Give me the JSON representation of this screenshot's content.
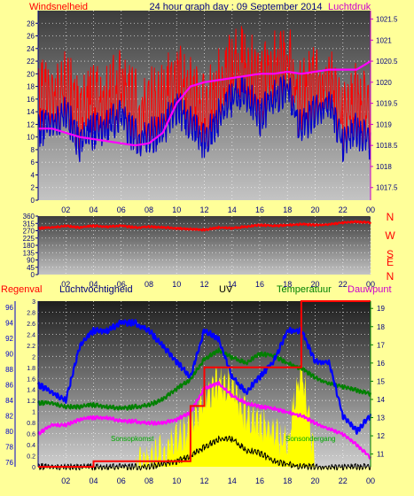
{
  "header": {
    "left_label": "Windsnelheid",
    "title": "24 hour graph day : 09 September 2014",
    "right_label": "Luchtdruk"
  },
  "panel2": {
    "compass": [
      "N",
      "W",
      "S",
      "E",
      "N"
    ]
  },
  "panel3": {
    "labels": {
      "regenval": "Regenval",
      "luchtvochtigheid": "Luchtvochtigheid",
      "uv": "UV",
      "temperatuur": "Temperatuur",
      "dauwpunt": "Dauwpunt",
      "sunrise": "Sonsopkomst",
      "sunset": "Sonsondergang"
    }
  },
  "colors": {
    "wind": "#ff0000",
    "wind_avg": "#0000cc",
    "pressure": "#ff00ff",
    "direction": "#ff0000",
    "humidity": "#0000ff",
    "temperature": "#008000",
    "dewpoint": "#ff00ff",
    "rain": "#ff0000",
    "uv": "#000000",
    "solar": "#ffff00",
    "label_purple": "#cc00cc",
    "label_navy": "#000080"
  },
  "chart_data": [
    {
      "type": "line",
      "name": "wind-pressure",
      "x_ticks": [
        "02",
        "04",
        "06",
        "08",
        "10",
        "12",
        "14",
        "16",
        "18",
        "20",
        "22",
        "00"
      ],
      "y_left_ticks": [
        0,
        2,
        4,
        6,
        8,
        10,
        12,
        14,
        16,
        18,
        20,
        22,
        24,
        26,
        28
      ],
      "y_left_range": [
        0,
        30
      ],
      "y_right_ticks": [
        1017.5,
        1018,
        1018.5,
        1019,
        1019.5,
        1020,
        1020.5,
        1021,
        1021.5
      ],
      "y_right_range": [
        1017.2,
        1021.7
      ],
      "hours": [
        0,
        1,
        2,
        3,
        4,
        5,
        6,
        7,
        8,
        9,
        10,
        11,
        12,
        13,
        14,
        15,
        16,
        17,
        18,
        19,
        20,
        21,
        22,
        23,
        24
      ],
      "series": [
        {
          "values": [
            11,
            12,
            14,
            9,
            11,
            12,
            13,
            10,
            10,
            11,
            15,
            12,
            9,
            13,
            16,
            17,
            13,
            16,
            18,
            11,
            14,
            16,
            9,
            11,
            9
          ]
        },
        {
          "values": [
            1018.9,
            1018.9,
            1018.8,
            1018.7,
            1018.65,
            1018.6,
            1018.55,
            1018.5,
            1018.55,
            1018.8,
            1019.5,
            1019.9,
            1020.0,
            1020.05,
            1020.1,
            1020.15,
            1020.2,
            1020.2,
            1020.25,
            1020.2,
            1020.25,
            1020.3,
            1020.3,
            1020.3,
            1020.5
          ]
        }
      ]
    },
    {
      "type": "line",
      "name": "wind-direction",
      "x_ticks": [
        "02",
        "04",
        "06",
        "08",
        "10",
        "12",
        "14",
        "16",
        "18",
        "20",
        "22",
        "00"
      ],
      "y_ticks": [
        0,
        45,
        90,
        135,
        180,
        225,
        270,
        315,
        360
      ],
      "y_range": [
        0,
        360
      ],
      "hours": [
        0,
        1,
        2,
        3,
        4,
        5,
        6,
        7,
        8,
        9,
        10,
        11,
        12,
        13,
        14,
        15,
        16,
        17,
        18,
        19,
        20,
        21,
        22,
        23,
        24
      ],
      "series": [
        {
          "values": [
            285,
            290,
            300,
            290,
            300,
            295,
            300,
            290,
            295,
            290,
            285,
            280,
            275,
            290,
            285,
            295,
            305,
            300,
            305,
            310,
            305,
            310,
            320,
            325,
            320
          ]
        }
      ]
    },
    {
      "type": "line",
      "name": "humidity-temperature-rain-uv",
      "x_ticks": [
        "02",
        "04",
        "06",
        "08",
        "10",
        "12",
        "14",
        "16",
        "18",
        "20",
        "22",
        "00"
      ],
      "y_rain_ticks": [
        0,
        0.2,
        0.4,
        0.6,
        0.8,
        1,
        1.2,
        1.4,
        1.6,
        1.8,
        2,
        2.2,
        2.4,
        2.6,
        2.8,
        3
      ],
      "y_rain_range": [
        0,
        3
      ],
      "y_humidity_ticks": [
        76,
        78,
        80,
        82,
        84,
        86,
        88,
        90,
        92,
        94,
        96
      ],
      "y_humidity_range": [
        75.4,
        96.8
      ],
      "y_temp_ticks": [
        11,
        12,
        13,
        14,
        15,
        16,
        17,
        18,
        19
      ],
      "y_temp_range": [
        10.3,
        19.4
      ],
      "hours": [
        0,
        1,
        2,
        3,
        4,
        5,
        6,
        7,
        8,
        9,
        10,
        11,
        12,
        13,
        14,
        15,
        16,
        17,
        18,
        19,
        20,
        21,
        22,
        23,
        24
      ],
      "series": [
        {
          "values": [
            86,
            85,
            84,
            91,
            93,
            93,
            94,
            94,
            93,
            91,
            89,
            87,
            93,
            92,
            87,
            85,
            87,
            89,
            93,
            93,
            89,
            89,
            82,
            80,
            82
          ]
        },
        {
          "values": [
            13.8,
            13.8,
            13.6,
            13.6,
            13.7,
            13.6,
            13.5,
            13.6,
            13.7,
            14.0,
            14.6,
            15.1,
            16.2,
            16.7,
            16.3,
            16.0,
            16.5,
            16.4,
            16.0,
            15.7,
            15.2,
            14.9,
            14.7,
            14.5,
            14.3
          ]
        },
        {
          "values": [
            12.1,
            12.6,
            12.6,
            12.9,
            13.0,
            13.0,
            12.8,
            12.8,
            12.7,
            12.7,
            12.9,
            13.3,
            14.6,
            14.9,
            14.2,
            13.8,
            13.6,
            13.5,
            13.3,
            13.1,
            12.7,
            12.4,
            12.1,
            11.5,
            10.8
          ]
        },
        {
          "values": [
            0,
            0,
            0,
            0,
            0.1,
            0.1,
            0.1,
            0.1,
            0.1,
            0.1,
            0.1,
            1.1,
            1.8,
            1.8,
            1.8,
            1.8,
            1.8,
            1.8,
            1.8,
            3.0,
            3.0,
            3.0,
            3.0,
            3.0,
            3.0
          ]
        },
        {
          "values": [
            0,
            0,
            0,
            0,
            0,
            0,
            0,
            0,
            0,
            0.05,
            0.1,
            0.2,
            0.35,
            0.5,
            0.5,
            0.3,
            0.25,
            0.1,
            0.05,
            0,
            0,
            0,
            0,
            0,
            0
          ]
        },
        {
          "values": [
            0,
            0,
            0,
            0,
            0,
            0,
            0,
            0,
            0.1,
            0.3,
            0.55,
            0.7,
            1.3,
            1.55,
            1.45,
            0.9,
            0.85,
            0.6,
            0.4,
            1.9,
            0,
            0,
            0,
            0,
            0
          ]
        }
      ]
    }
  ]
}
